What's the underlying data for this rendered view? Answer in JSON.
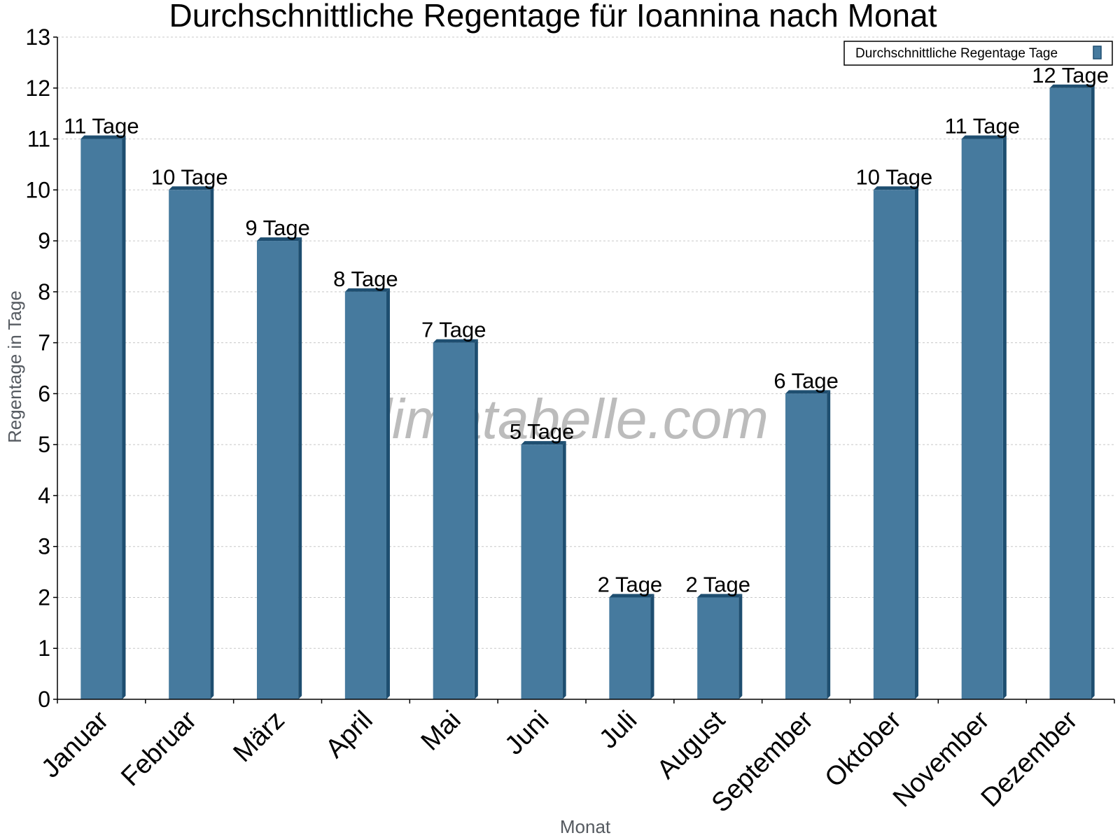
{
  "chart_data": {
    "type": "bar",
    "title": "Durchschnittliche Regentage für Ioannina nach Monat",
    "xlabel": "Monat",
    "ylabel": "Regentage in Tage",
    "categories": [
      "Januar",
      "Februar",
      "März",
      "April",
      "Mai",
      "Juni",
      "Juli",
      "August",
      "September",
      "Oktober",
      "November",
      "Dezember"
    ],
    "series": [
      {
        "name": "Durchschnittliche Regentage Tage",
        "values": [
          11,
          10,
          9,
          8,
          7,
          5,
          2,
          2,
          6,
          10,
          11,
          12
        ],
        "data_labels": [
          "11 Tage",
          "10 Tage",
          "9 Tage",
          "8 Tage",
          "7 Tage",
          "5 Tage",
          "2 Tage",
          "2 Tage",
          "6 Tage",
          "10 Tage",
          "11 Tage",
          "12 Tage"
        ]
      }
    ],
    "ylim": [
      0,
      13
    ],
    "yticks": [
      0,
      1,
      2,
      3,
      4,
      5,
      6,
      7,
      8,
      9,
      10,
      11,
      12,
      13
    ],
    "grid": true,
    "legend_position": "top-right",
    "bar_color": "#467a9e",
    "bar_side_color": "#1e4e70",
    "watermark": "klimatabelle.com"
  }
}
